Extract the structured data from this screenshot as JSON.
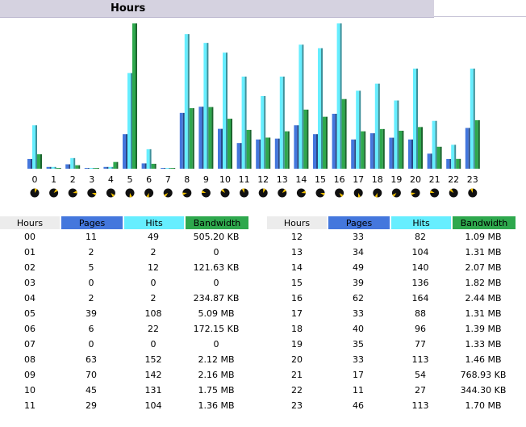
{
  "section": {
    "title": "Hours"
  },
  "colors": {
    "pages": "#4477dd",
    "hits": "#66eeff",
    "bandwidth": "#2ea84d",
    "header": "#d5d2e0"
  },
  "columns": {
    "hours": "Hours",
    "pages": "Pages",
    "hits": "Hits",
    "bandwidth": "Bandwidth"
  },
  "chart_data": {
    "type": "bar",
    "categories": [
      "0",
      "1",
      "2",
      "3",
      "4",
      "5",
      "6",
      "7",
      "8",
      "9",
      "10",
      "11",
      "12",
      "13",
      "14",
      "15",
      "16",
      "17",
      "18",
      "19",
      "20",
      "21",
      "22",
      "23"
    ],
    "series": [
      {
        "name": "Pages",
        "values": [
          11,
          2,
          5,
          0,
          2,
          39,
          6,
          0,
          63,
          70,
          45,
          29,
          33,
          34,
          49,
          39,
          62,
          33,
          40,
          35,
          33,
          17,
          11,
          46
        ]
      },
      {
        "name": "Hits",
        "values": [
          49,
          2,
          12,
          0,
          2,
          108,
          22,
          0,
          152,
          142,
          131,
          104,
          82,
          104,
          140,
          136,
          164,
          88,
          96,
          77,
          113,
          54,
          27,
          113
        ]
      },
      {
        "name": "Bandwidth",
        "values": [
          505.2,
          0,
          121.63,
          0,
          234.87,
          5090,
          172.15,
          0,
          2120,
          2160,
          1750,
          1360,
          1090,
          1310,
          2070,
          1820,
          2440,
          1310,
          1390,
          1330,
          1460,
          768.93,
          344.3,
          1700
        ]
      }
    ],
    "pie_markers": 24
  },
  "rows_left": [
    {
      "hour": "00",
      "pages": "11",
      "hits": "49",
      "bandwidth": "505.20 KB"
    },
    {
      "hour": "01",
      "pages": "2",
      "hits": "2",
      "bandwidth": "0"
    },
    {
      "hour": "02",
      "pages": "5",
      "hits": "12",
      "bandwidth": "121.63 KB"
    },
    {
      "hour": "03",
      "pages": "0",
      "hits": "0",
      "bandwidth": "0"
    },
    {
      "hour": "04",
      "pages": "2",
      "hits": "2",
      "bandwidth": "234.87 KB"
    },
    {
      "hour": "05",
      "pages": "39",
      "hits": "108",
      "bandwidth": "5.09 MB"
    },
    {
      "hour": "06",
      "pages": "6",
      "hits": "22",
      "bandwidth": "172.15 KB"
    },
    {
      "hour": "07",
      "pages": "0",
      "hits": "0",
      "bandwidth": "0"
    },
    {
      "hour": "08",
      "pages": "63",
      "hits": "152",
      "bandwidth": "2.12 MB"
    },
    {
      "hour": "09",
      "pages": "70",
      "hits": "142",
      "bandwidth": "2.16 MB"
    },
    {
      "hour": "10",
      "pages": "45",
      "hits": "131",
      "bandwidth": "1.75 MB"
    },
    {
      "hour": "11",
      "pages": "29",
      "hits": "104",
      "bandwidth": "1.36 MB"
    }
  ],
  "rows_right": [
    {
      "hour": "12",
      "pages": "33",
      "hits": "82",
      "bandwidth": "1.09 MB"
    },
    {
      "hour": "13",
      "pages": "34",
      "hits": "104",
      "bandwidth": "1.31 MB"
    },
    {
      "hour": "14",
      "pages": "49",
      "hits": "140",
      "bandwidth": "2.07 MB"
    },
    {
      "hour": "15",
      "pages": "39",
      "hits": "136",
      "bandwidth": "1.82 MB"
    },
    {
      "hour": "16",
      "pages": "62",
      "hits": "164",
      "bandwidth": "2.44 MB"
    },
    {
      "hour": "17",
      "pages": "33",
      "hits": "88",
      "bandwidth": "1.31 MB"
    },
    {
      "hour": "18",
      "pages": "40",
      "hits": "96",
      "bandwidth": "1.39 MB"
    },
    {
      "hour": "19",
      "pages": "35",
      "hits": "77",
      "bandwidth": "1.33 MB"
    },
    {
      "hour": "20",
      "pages": "33",
      "hits": "113",
      "bandwidth": "1.46 MB"
    },
    {
      "hour": "21",
      "pages": "17",
      "hits": "54",
      "bandwidth": "768.93 KB"
    },
    {
      "hour": "22",
      "pages": "11",
      "hits": "27",
      "bandwidth": "344.30 KB"
    },
    {
      "hour": "23",
      "pages": "46",
      "hits": "113",
      "bandwidth": "1.70 MB"
    }
  ]
}
